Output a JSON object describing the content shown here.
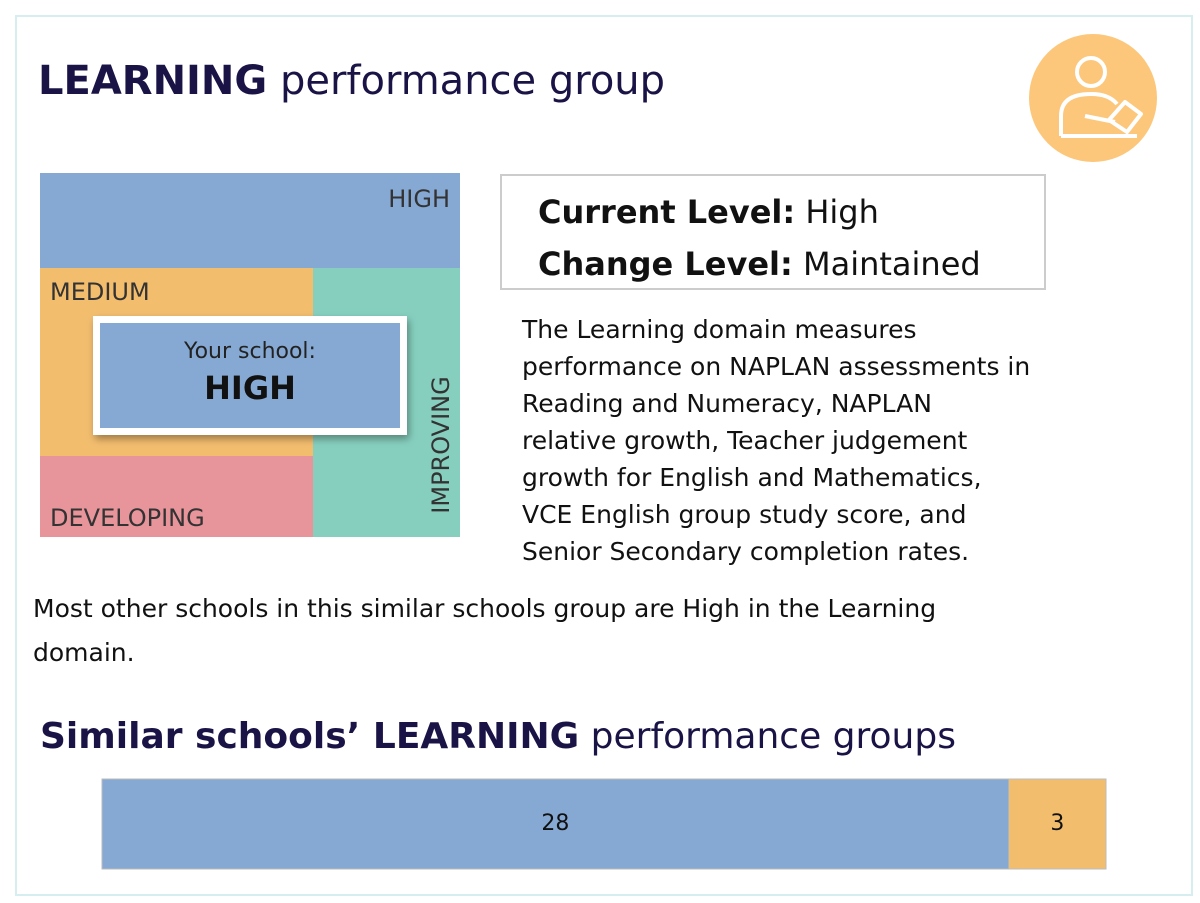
{
  "title": {
    "bold": "LEARNING",
    "rest": "performance group"
  },
  "matrix": {
    "high": "HIGH",
    "medium": "MEDIUM",
    "developing": "DEVELOPING",
    "improving": "IMPROVING",
    "your_school": "Your school:",
    "your_level": "HIGH"
  },
  "levels": {
    "current_label": "Current Level:",
    "current": "High",
    "change_label": "Change Level:",
    "change": "Maintained"
  },
  "description": [
    "The Learning domain measures",
    "performance on NAPLAN assessments in",
    "Reading and Numeracy, NAPLAN",
    "relative growth, Teacher judgement",
    "growth for English and Mathematics,",
    "VCE English group study score, and",
    "Senior Secondary completion rates."
  ],
  "note": [
    "Most other schools in this similar schools group are High in the Learning",
    "domain."
  ],
  "similar": {
    "title_bold": "Similar schools’ LEARNING",
    "title_rest": "performance groups",
    "segments": [
      {
        "value": 28,
        "color": "#86a9d4"
      },
      {
        "value": 3,
        "color": "#f3bd6e"
      }
    ]
  }
}
